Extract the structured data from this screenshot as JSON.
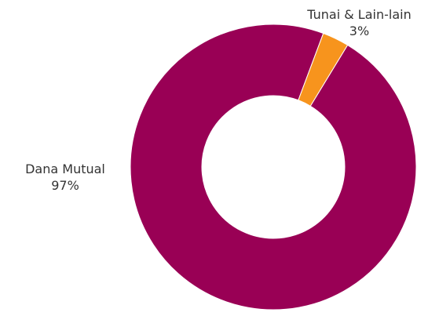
{
  "chart_data": {
    "type": "pie",
    "style": "donut",
    "series": [
      {
        "name": "Dana Mutual",
        "value": 97,
        "label": "97%",
        "color": "#990055"
      },
      {
        "name": "Tunai & Lain-lain",
        "value": 3,
        "label": "3%",
        "color": "#f7941d"
      }
    ]
  }
}
